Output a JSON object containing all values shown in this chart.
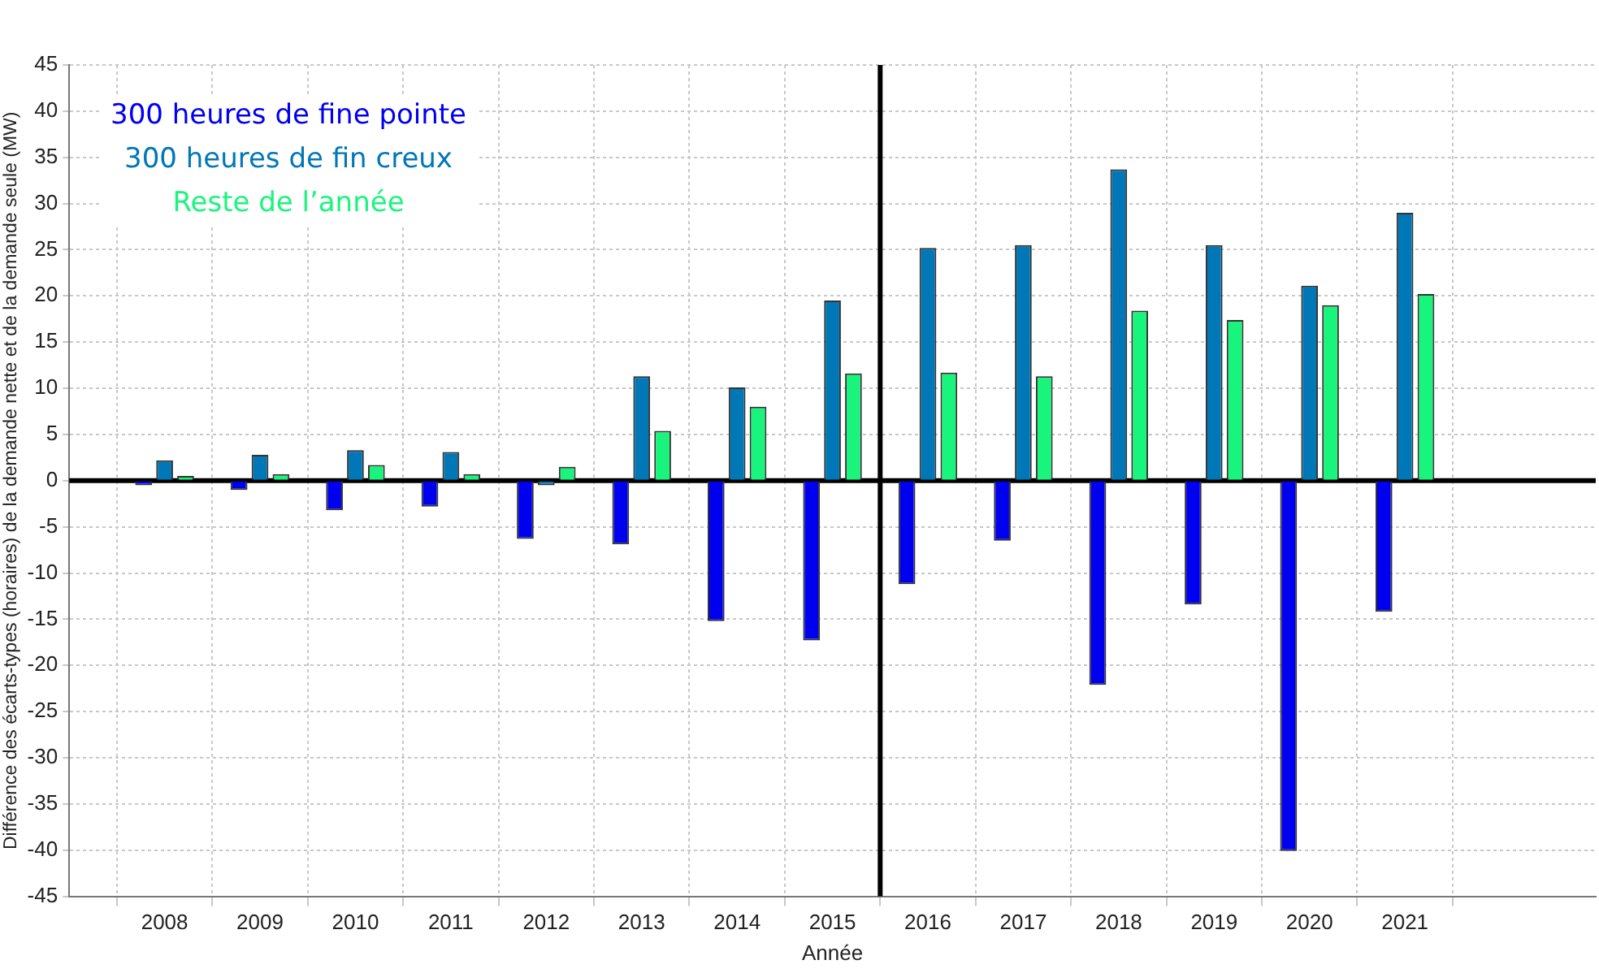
{
  "chart_data": {
    "type": "bar",
    "xlabel": "Année",
    "ylabel": "Différence des écarts-types (horaires) de la demande nette et de la demande seule (MW)",
    "x": [
      2008,
      2009,
      2010,
      2011,
      2012,
      2013,
      2014,
      2015,
      2016,
      2017,
      2018,
      2019,
      2020,
      2021
    ],
    "series": [
      {
        "name": "300 heures de fine pointe",
        "color": "#0000f0",
        "values": [
          -0.5,
          -1,
          -3.2,
          -2.8,
          -6.3,
          -6.9,
          -15.2,
          -17.3,
          -11.2,
          -6.5,
          -22.1,
          -13.4,
          -40.1,
          -14.2
        ]
      },
      {
        "name": "300 heures de fin creux",
        "color": "#0077b6",
        "values": [
          2.2,
          2.8,
          3.3,
          3.1,
          -0.5,
          11.3,
          10.1,
          19.5,
          25.2,
          25.5,
          33.7,
          25.5,
          21.1,
          29.0
        ]
      },
      {
        "name": "Reste de l’année",
        "color": "#19f57c",
        "values": [
          0.5,
          0.7,
          1.7,
          0.7,
          1.5,
          5.4,
          8.0,
          11.6,
          11.7,
          11.3,
          18.4,
          17.4,
          19.0,
          20.2
        ]
      }
    ],
    "xlim": [
      2007,
      2023
    ],
    "xticks": [
      2008,
      2009,
      2010,
      2011,
      2012,
      2013,
      2014,
      2015,
      2016,
      2017,
      2018,
      2019,
      2020,
      2021
    ],
    "ylim": [
      -45,
      45
    ],
    "yticks": [
      -45,
      -40,
      -35,
      -30,
      -25,
      -20,
      -15,
      -10,
      -5,
      0,
      5,
      10,
      15,
      20,
      25,
      30,
      35,
      40,
      45
    ],
    "ref_lines": [
      {
        "axis": "y",
        "value": 0,
        "color": "#000000"
      },
      {
        "axis": "x",
        "value": 2015.5,
        "color": "#000000"
      }
    ],
    "grid": true,
    "legend": "top left"
  }
}
